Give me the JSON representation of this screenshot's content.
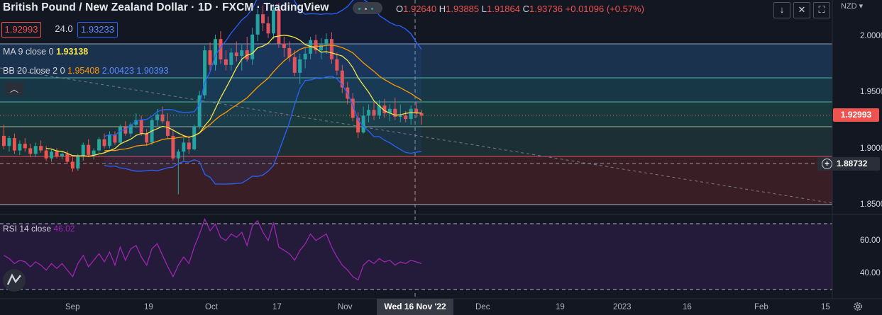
{
  "header": {
    "title": "British Pound / New Zealand Dollar · 1D · FXCM · TradingView",
    "ohlc": {
      "o_label": "O",
      "o": "1.92640",
      "h_label": "H",
      "h": "1.93885",
      "l_label": "L",
      "l": "1.91864",
      "c_label": "C",
      "c": "1.93736",
      "change": "+0.01096 (+0.57%)"
    },
    "sell_price": "1.92993",
    "spread": "24.0",
    "buy_price": "1.93233",
    "currency": "NZD",
    "buttons": {
      "down_icon": "arrow-down-icon",
      "expand_icon": "expand-icon",
      "maximize_icon": "maximize-icon"
    }
  },
  "indicators": {
    "ma": {
      "label": "MA 9 close 0",
      "value": "1.93138",
      "color": "#f7e44a"
    },
    "bb": {
      "label": "BB 20 close 2 0",
      "basis": "1.95408",
      "upper": "2.00423",
      "lower": "1.90393",
      "basis_color": "#ff9800",
      "band_color": "#2962ff"
    },
    "rsi": {
      "label": "RSI 14 close",
      "value": "46.02",
      "color": "#9c27b0"
    }
  },
  "price_axis": {
    "labels": [
      "2.00000",
      "1.95000",
      "1.90000",
      "1.85000"
    ],
    "last_price": "1.92993",
    "crosshair_price": "1.88732"
  },
  "rsi_axis": {
    "labels": [
      "60.00",
      "40.00"
    ]
  },
  "time_axis": {
    "labels": [
      "Sep",
      "19",
      "Oct",
      "17",
      "Nov",
      "Dec",
      "19",
      "2023",
      "16",
      "Feb",
      "15"
    ],
    "crosshair_date": "Wed 16 Nov '22"
  },
  "colors": {
    "up": "#26a69a",
    "down": "#ef5350",
    "bg": "#131722"
  },
  "chart_data": {
    "type": "candlestick",
    "symbol": "GBPNZD",
    "interval": "1D",
    "y_ticks": [
      2.0,
      1.95,
      1.9,
      1.85
    ],
    "candles": [
      [
        1.912,
        1.922,
        1.9,
        1.903
      ],
      [
        1.903,
        1.912,
        1.898,
        1.91
      ],
      [
        1.91,
        1.914,
        1.896,
        1.899
      ],
      [
        1.899,
        1.908,
        1.895,
        1.905
      ],
      [
        1.905,
        1.91,
        1.898,
        1.901
      ],
      [
        1.901,
        1.905,
        1.893,
        1.896
      ],
      [
        1.896,
        1.906,
        1.893,
        1.903
      ],
      [
        1.903,
        1.908,
        1.897,
        1.899
      ],
      [
        1.899,
        1.903,
        1.89,
        1.892
      ],
      [
        1.892,
        1.9,
        1.889,
        1.898
      ],
      [
        1.898,
        1.901,
        1.892,
        1.894
      ],
      [
        1.894,
        1.898,
        1.891,
        1.896
      ],
      [
        1.896,
        1.899,
        1.887,
        1.889
      ],
      [
        1.889,
        1.893,
        1.88,
        1.883
      ],
      [
        1.883,
        1.896,
        1.881,
        1.894
      ],
      [
        1.894,
        1.906,
        1.89,
        1.904
      ],
      [
        1.904,
        1.909,
        1.893,
        1.895
      ],
      [
        1.895,
        1.901,
        1.891,
        1.899
      ],
      [
        1.899,
        1.911,
        1.896,
        1.909
      ],
      [
        1.909,
        1.914,
        1.901,
        1.903
      ],
      [
        1.903,
        1.916,
        1.901,
        1.913
      ],
      [
        1.913,
        1.916,
        1.904,
        1.906
      ],
      [
        1.906,
        1.922,
        1.904,
        1.92
      ],
      [
        1.92,
        1.925,
        1.912,
        1.914
      ],
      [
        1.914,
        1.924,
        1.911,
        1.922
      ],
      [
        1.922,
        1.932,
        1.919,
        1.926
      ],
      [
        1.926,
        1.93,
        1.912,
        1.914
      ],
      [
        1.914,
        1.918,
        1.903,
        1.906
      ],
      [
        1.906,
        1.928,
        1.904,
        1.926
      ],
      [
        1.926,
        1.936,
        1.921,
        1.931
      ],
      [
        1.931,
        1.938,
        1.923,
        1.925
      ],
      [
        1.925,
        1.932,
        1.91,
        1.912
      ],
      [
        1.912,
        1.918,
        1.89,
        1.892
      ],
      [
        1.892,
        1.9,
        1.86,
        1.898
      ],
      [
        1.898,
        1.91,
        1.89,
        1.906
      ],
      [
        1.906,
        1.912,
        1.896,
        1.9
      ],
      [
        1.9,
        1.922,
        1.899,
        1.92
      ],
      [
        1.92,
        1.952,
        1.918,
        1.948
      ],
      [
        1.948,
        1.992,
        1.945,
        1.988
      ],
      [
        1.988,
        1.995,
        1.97,
        1.975
      ],
      [
        1.975,
        2.002,
        1.97,
        1.998
      ],
      [
        1.998,
        2.005,
        1.976,
        1.98
      ],
      [
        1.98,
        1.988,
        1.97,
        1.975
      ],
      [
        1.975,
        1.99,
        1.97,
        1.986
      ],
      [
        1.986,
        1.996,
        1.978,
        1.983
      ],
      [
        1.983,
        1.993,
        1.97,
        1.988
      ],
      [
        1.988,
        2.0,
        1.978,
        1.98
      ],
      [
        1.98,
        2.008,
        1.975,
        2.002
      ],
      [
        2.002,
        2.025,
        1.996,
        2.02
      ],
      [
        2.02,
        2.028,
        2.005,
        2.012
      ],
      [
        2.012,
        2.018,
        1.999,
        2.003
      ],
      [
        2.003,
        2.028,
        1.998,
        2.024
      ],
      [
        2.024,
        2.03,
        1.99,
        1.994
      ],
      [
        1.994,
        2.0,
        1.982,
        1.99
      ],
      [
        1.99,
        1.996,
        1.978,
        1.982
      ],
      [
        1.982,
        1.988,
        1.965,
        1.968
      ],
      [
        1.968,
        1.985,
        1.958,
        1.98
      ],
      [
        1.98,
        1.99,
        1.972,
        1.985
      ],
      [
        1.985,
        2.0,
        1.98,
        1.997
      ],
      [
        1.997,
        2.002,
        1.985,
        1.988
      ],
      [
        1.988,
        1.999,
        1.98,
        1.993
      ],
      [
        1.993,
        2.003,
        1.985,
        1.998
      ],
      [
        1.998,
        2.004,
        1.976,
        1.98
      ],
      [
        1.98,
        1.986,
        1.966,
        1.97
      ],
      [
        1.97,
        1.975,
        1.95,
        1.955
      ],
      [
        1.955,
        1.96,
        1.94,
        1.945
      ],
      [
        1.945,
        1.95,
        1.925,
        1.928
      ],
      [
        1.928,
        1.933,
        1.91,
        1.915
      ],
      [
        1.915,
        1.938,
        1.914,
        1.93
      ],
      [
        1.93,
        1.94,
        1.924,
        1.935
      ],
      [
        1.935,
        1.942,
        1.926,
        1.93
      ],
      [
        1.93,
        1.944,
        1.927,
        1.939
      ],
      [
        1.939,
        1.945,
        1.928,
        1.932
      ],
      [
        1.932,
        1.94,
        1.925,
        1.936
      ],
      [
        1.936,
        1.946,
        1.926,
        1.929
      ],
      [
        1.929,
        1.94,
        1.924,
        1.93
      ],
      [
        1.93,
        1.934,
        1.924,
        1.927
      ],
      [
        1.927,
        1.939,
        1.922,
        1.936
      ],
      [
        1.936,
        1.942,
        1.928,
        1.932
      ],
      [
        1.932,
        1.935,
        1.922,
        1.93
      ]
    ],
    "rsi": [
      51,
      49,
      46,
      48,
      47,
      44,
      47,
      45,
      42,
      46,
      43,
      46,
      42,
      38,
      46,
      51,
      44,
      48,
      52,
      47,
      53,
      45,
      56,
      48,
      55,
      57,
      50,
      45,
      55,
      58,
      51,
      44,
      38,
      45,
      50,
      46,
      56,
      64,
      73,
      66,
      70,
      62,
      60,
      64,
      62,
      65,
      57,
      69,
      72,
      65,
      60,
      71,
      56,
      54,
      52,
      48,
      54,
      58,
      64,
      60,
      62,
      64,
      56,
      50,
      45,
      42,
      38,
      36,
      45,
      48,
      46,
      49,
      47,
      48,
      45,
      47,
      46,
      48,
      47,
      46
    ],
    "ma9_label": "MA 9 close 0",
    "bb_label": "BB 20 close 2 0"
  }
}
